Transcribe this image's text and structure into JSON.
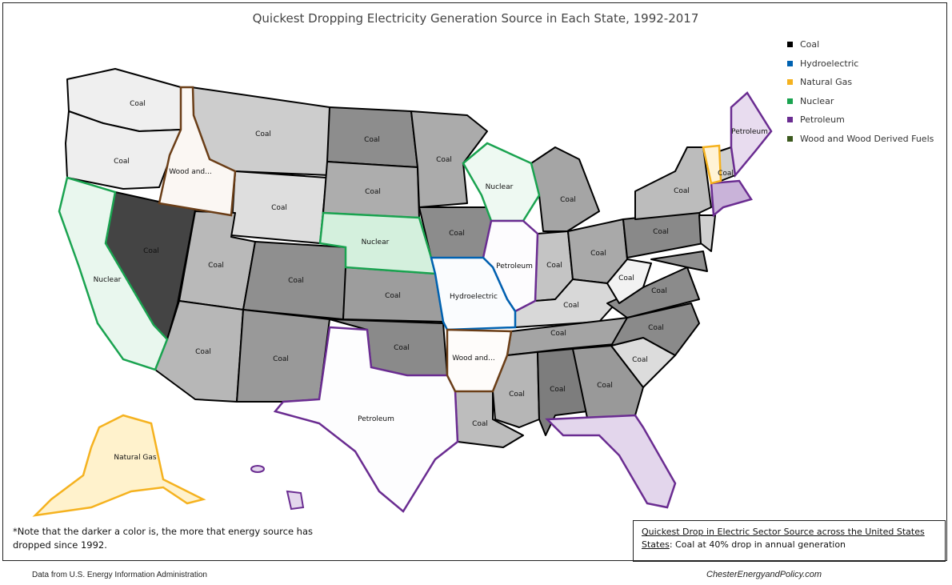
{
  "title": "Quickest Dropping Electricity Generation Source in Each State, 1992-2017",
  "legend": [
    {
      "label": "Coal",
      "color": "#000000"
    },
    {
      "label": "Hydroelectric",
      "color": "#0062b1"
    },
    {
      "label": "Natural Gas",
      "color": "#f5b21f"
    },
    {
      "label": "Nuclear",
      "color": "#1aa350"
    },
    {
      "label": "Petroleum",
      "color": "#6a2c91"
    },
    {
      "label": "Wood and Wood Derived Fuels",
      "color": "#3c5a1e"
    }
  ],
  "state_labels": {
    "wa": "Coal",
    "or": "Coal",
    "id": "Wood and...",
    "mt": "Coal",
    "wy": "Coal",
    "ca": "Nuclear",
    "nv": "Coal",
    "ut": "Coal",
    "co": "Coal",
    "az": "Coal",
    "nm": "Coal",
    "nd": "Coal",
    "sd": "Coal",
    "ne": "Nuclear",
    "ks": "Coal",
    "ok": "Coal",
    "tx": "Petroleum",
    "mn": "Coal",
    "ia": "Coal",
    "mo": "Hydroelectric",
    "ar": "Wood and...",
    "la": "Coal",
    "wi": "Nuclear",
    "il": "Petroleum",
    "mi": "Coal",
    "in": "Coal",
    "oh": "Coal",
    "ky": "Coal",
    "tn": "Coal",
    "ms": "Coal",
    "al": "Coal",
    "ga": "Coal",
    "fl": "",
    "sc": "Coal",
    "nc": "Coal",
    "va": "Coal",
    "wv": "Coal",
    "pa": "Coal",
    "ny": "Coal",
    "me": "Petroleum",
    "nh": "Coal",
    "ak": "Natural Gas"
  },
  "note": "*Note that the darker a color is, the more that energy source has dropped since 1992.",
  "summary": {
    "heading": "Quickest Drop in Electric Sector Source across the United States",
    "body": ": Coal at 40% drop in annual generation",
    "body_prefix": "States"
  },
  "source": "Data from U.S. Energy Information Administration",
  "credit": "ChesterEnergyandPolicy.com"
}
